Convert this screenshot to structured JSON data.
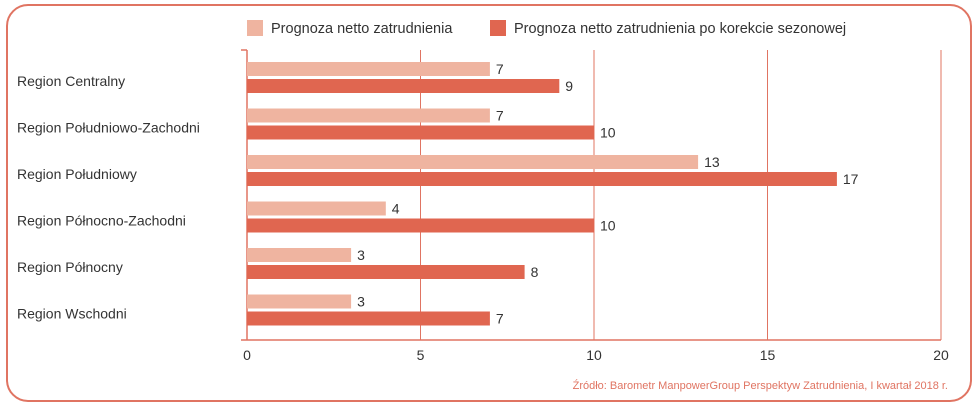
{
  "chart_data": {
    "type": "bar",
    "orientation": "horizontal",
    "categories": [
      "Region Centralny",
      "Region Południowo-Zachodni",
      "Region Południowy",
      "Region Północno-Zachodni",
      "Region Północny",
      "Region Wschodni"
    ],
    "series": [
      {
        "name": "Prognoza netto zatrudnienia",
        "color": "#efb4a0",
        "values": [
          7,
          7,
          13,
          4,
          3,
          3
        ]
      },
      {
        "name": "Prognoza netto zatrudnienia po korekcie sezonowej",
        "color": "#e06650",
        "values": [
          9,
          10,
          17,
          10,
          8,
          7
        ]
      }
    ],
    "xlim": [
      0,
      20
    ],
    "xticks": [
      "0",
      "5",
      "10",
      "15",
      "20"
    ],
    "grid": true,
    "legend": "top",
    "source": "Źródło: Barometr ManpowerGroup Perspektyw Zatrudnienia, I kwartał 2018 r."
  }
}
